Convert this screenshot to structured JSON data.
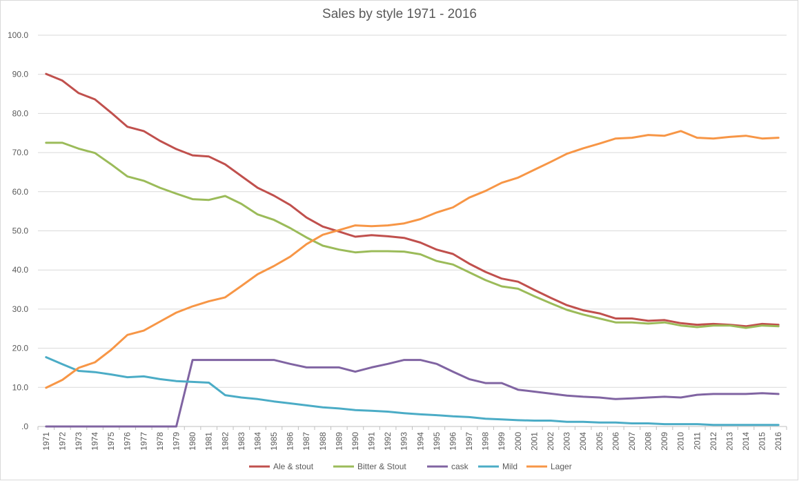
{
  "chart_data": {
    "type": "line",
    "title": "Sales by style 1971 - 2016",
    "xlabel": "",
    "ylabel": "",
    "ylim": [
      0,
      100
    ],
    "yticks": [
      ".0",
      "10.0",
      "20.0",
      "30.0",
      "40.0",
      "50.0",
      "60.0",
      "70.0",
      "80.0",
      "90.0",
      "100.0"
    ],
    "grid": true,
    "legend": "bottom",
    "x": [
      "1971",
      "1972",
      "1973",
      "1974",
      "1975",
      "1976",
      "1977",
      "1978",
      "1979",
      "1980",
      "1981",
      "1982",
      "1983",
      "1984",
      "1985",
      "1986",
      "1987",
      "1988",
      "1989",
      "1990",
      "1991",
      "1992",
      "1993",
      "1994",
      "1995",
      "1996",
      "1997",
      "1998",
      "1999",
      "2000",
      "2001",
      "2002",
      "2003",
      "2004",
      "2005",
      "2006",
      "2007",
      "2008",
      "2009",
      "2010",
      "2011",
      "2012",
      "2013",
      "2014",
      "2015",
      "2016"
    ],
    "series": [
      {
        "name": "Ale & stout",
        "color": "#c0504d",
        "values": [
          90.1,
          88.4,
          85.2,
          83.6,
          80.2,
          76.6,
          75.5,
          73.0,
          70.9,
          69.3,
          69.0,
          67.0,
          64.0,
          61.0,
          59.0,
          56.6,
          53.4,
          51.1,
          49.8,
          48.5,
          48.9,
          48.6,
          48.2,
          47.0,
          45.2,
          44.1,
          41.6,
          39.5,
          37.8,
          37.0,
          34.9,
          32.9,
          31.0,
          29.7,
          28.9,
          27.6,
          27.6,
          27.0,
          27.2,
          26.4,
          26.0,
          26.2,
          26.0,
          25.6,
          26.2,
          26.0
        ]
      },
      {
        "name": "Bitter & Stout",
        "color": "#9bbb59",
        "values": [
          72.5,
          72.5,
          71.0,
          69.9,
          67.0,
          63.9,
          62.8,
          61.0,
          59.5,
          58.1,
          57.9,
          58.9,
          56.9,
          54.2,
          52.8,
          50.7,
          48.3,
          46.2,
          45.2,
          44.5,
          44.8,
          44.8,
          44.7,
          44.0,
          42.3,
          41.4,
          39.4,
          37.4,
          35.8,
          35.2,
          33.3,
          31.5,
          29.8,
          28.6,
          27.6,
          26.6,
          26.6,
          26.3,
          26.6,
          25.8,
          25.4,
          25.8,
          25.8,
          25.2,
          25.8,
          25.6
        ]
      },
      {
        "name": "cask",
        "color": "#8064a2",
        "values": [
          0,
          0,
          0,
          0,
          0,
          0,
          0,
          0,
          0,
          17.0,
          17.0,
          17.0,
          17.0,
          17.0,
          17.0,
          16.0,
          15.1,
          15.1,
          15.1,
          14.0,
          15.1,
          16.0,
          17.0,
          17.0,
          16.0,
          14.0,
          12.1,
          11.1,
          11.1,
          9.4,
          8.9,
          8.4,
          7.9,
          7.6,
          7.4,
          7.0,
          7.2,
          7.4,
          7.6,
          7.4,
          8.1,
          8.3,
          8.3,
          8.3,
          8.5,
          8.3
        ]
      },
      {
        "name": "Mild",
        "color": "#4bacc6",
        "values": [
          17.7,
          15.9,
          14.2,
          13.9,
          13.3,
          12.6,
          12.8,
          12.1,
          11.6,
          11.4,
          11.2,
          8.0,
          7.4,
          7.0,
          6.4,
          5.9,
          5.4,
          4.9,
          4.6,
          4.2,
          4.0,
          3.8,
          3.4,
          3.1,
          2.9,
          2.6,
          2.4,
          2.0,
          1.8,
          1.6,
          1.5,
          1.5,
          1.2,
          1.2,
          1.0,
          1.0,
          0.8,
          0.8,
          0.6,
          0.6,
          0.6,
          0.4,
          0.4,
          0.4,
          0.4,
          0.4
        ]
      },
      {
        "name": "Lager",
        "color": "#f79646",
        "values": [
          9.9,
          11.9,
          15.0,
          16.4,
          19.6,
          23.4,
          24.5,
          26.8,
          29.1,
          30.7,
          32.0,
          33.0,
          35.9,
          38.9,
          41.0,
          43.4,
          46.6,
          49.0,
          50.2,
          51.4,
          51.2,
          51.4,
          51.9,
          53.0,
          54.7,
          56.0,
          58.5,
          60.2,
          62.3,
          63.6,
          65.6,
          67.6,
          69.7,
          71.1,
          72.3,
          73.6,
          73.8,
          74.5,
          74.3,
          75.5,
          73.8,
          73.6,
          74.0,
          74.3,
          73.6,
          73.8
        ]
      }
    ]
  }
}
